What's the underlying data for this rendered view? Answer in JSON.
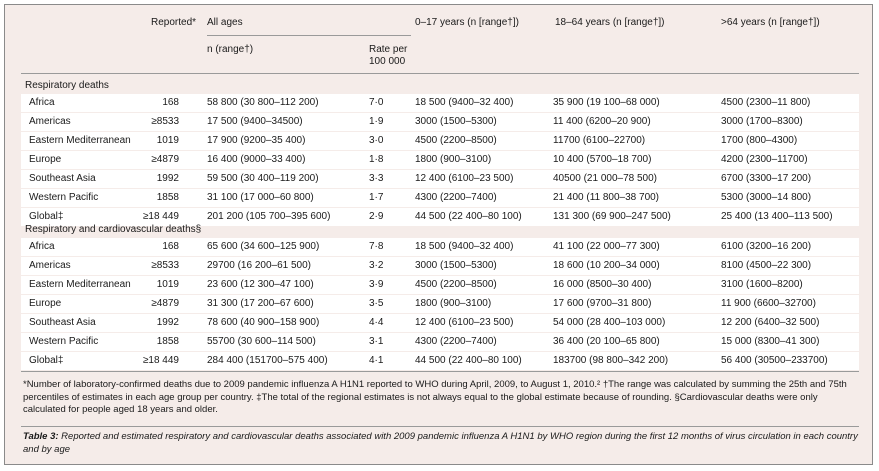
{
  "header": {
    "reported": "Reported*",
    "all_ages": "All ages",
    "n_range": "n (range†)",
    "rate_line1": "Rate per",
    "rate_line2": "100 000",
    "age_0_17": "0–17 years (n [range†])",
    "age_18_64": "18–64 years (n [range†])",
    "age_64": ">64 years (n [range†])"
  },
  "sections": [
    {
      "title": "Respiratory deaths",
      "rows": [
        {
          "region": "Africa",
          "reported": "168",
          "all": "58 800 (30 800–112 200)",
          "rate": "7·0",
          "a017": "18 500 (9400–32 400)",
          "a1864": "35 900 (19 100–68 000)",
          "a64": "4500 (2300–11 800)"
        },
        {
          "region": "Americas",
          "reported": "≥8533",
          "all": "17 500 (9400–34500)",
          "rate": "1·9",
          "a017": "3000 (1500–5300)",
          "a1864": "11 400 (6200–20 900)",
          "a64": "3000 (1700–8300)"
        },
        {
          "region": "Eastern Mediterranean",
          "reported": "1019",
          "all": "17 900 (9200–35 400)",
          "rate": "3·0",
          "a017": "4500 (2200–8500)",
          "a1864": "11700 (6100–22700)",
          "a64": "1700 (800–4300)"
        },
        {
          "region": "Europe",
          "reported": "≥4879",
          "all": "16 400 (9000–33 400)",
          "rate": "1·8",
          "a017": "1800 (900–3100)",
          "a1864": "10 400 (5700–18 700)",
          "a64": "4200 (2300–11700)"
        },
        {
          "region": "Southeast Asia",
          "reported": "1992",
          "all": "59 500 (30 400–119 200)",
          "rate": "3·3",
          "a017": "12 400 (6100–23 500)",
          "a1864": "40500 (21 000–78 500)",
          "a64": "6700 (3300–17 200)"
        },
        {
          "region": "Western Pacific",
          "reported": "1858",
          "all": "31 100 (17 000–60 800)",
          "rate": "1·7",
          "a017": "4300 (2200–7400)",
          "a1864": "21 400 (11 800–38 700)",
          "a64": "5300 (3000–14 800)"
        },
        {
          "region": "Global‡",
          "reported": "≥18 449",
          "all": "201 200 (105 700–395 600)",
          "rate": "2·9",
          "a017": "44 500 (22 400–80 100)",
          "a1864": "131 300 (69 900–247 500)",
          "a64": "25 400 (13 400–113 500)"
        }
      ]
    },
    {
      "title": "Respiratory and cardiovascular deaths§",
      "rows": [
        {
          "region": "Africa",
          "reported": "168",
          "all": "65 600 (34 600–125 900)",
          "rate": "7·8",
          "a017": "18 500 (9400–32 400)",
          "a1864": "41 100 (22 000–77 300)",
          "a64": "6100 (3200–16 200)"
        },
        {
          "region": "Americas",
          "reported": "≥8533",
          "all": "29700 (16 200–61 500)",
          "rate": "3·2",
          "a017": "3000 (1500–5300)",
          "a1864": "18 600 (10 200–34 000)",
          "a64": "8100 (4500–22 300)"
        },
        {
          "region": "Eastern Mediterranean",
          "reported": "1019",
          "all": "23 600 (12 300–47 100)",
          "rate": "3·9",
          "a017": "4500 (2200–8500)",
          "a1864": "16 000 (8500–30 400)",
          "a64": "3100 (1600–8200)"
        },
        {
          "region": "Europe",
          "reported": "≥4879",
          "all": "31 300 (17 200–67 600)",
          "rate": "3·5",
          "a017": "1800 (900–3100)",
          "a1864": "17 600 (9700–31 800)",
          "a64": "11 900 (6600–32700)"
        },
        {
          "region": "Southeast Asia",
          "reported": "1992",
          "all": "78 600 (40 900–158 900)",
          "rate": "4·4",
          "a017": "12 400 (6100–23 500)",
          "a1864": "54 000 (28 400–103 000)",
          "a64": "12 200 (6400–32 500)"
        },
        {
          "region": "Western Pacific",
          "reported": "1858",
          "all": "55700 (30 600–114 500)",
          "rate": "3·1",
          "a017": "4300 (2200–7400)",
          "a1864": "36 400 (20 100–65 800)",
          "a64": "15 000 (8300–41 300)"
        },
        {
          "region": "Global‡",
          "reported": "≥18 449",
          "all": "284 400 (151700–575 400)",
          "rate": "4·1",
          "a017": "44 500 (22 400–80 100)",
          "a1864": "183700 (98 800–342 200)",
          "a64": "56 400 (30500–233700)"
        }
      ]
    }
  ],
  "footnote": "*Number of laboratory-confirmed deaths due to 2009 pandemic influenza A H1N1 reported to WHO during April, 2009, to August 1, 2010.² †The range was calculated by summing the 25th and 75th percentiles of estimates in each age group per country. ‡The total of the regional estimates is not always equal to the global estimate because of rounding. §Cardiovascular deaths were only calculated for people aged 18 years and older.",
  "caption_label": "Table 3:",
  "caption_text": " Reported and estimated respiratory and cardiovascular deaths associated with 2009 pandemic influenza A H1N1 by WHO region during the first 12 months of virus circulation in each country and by age"
}
